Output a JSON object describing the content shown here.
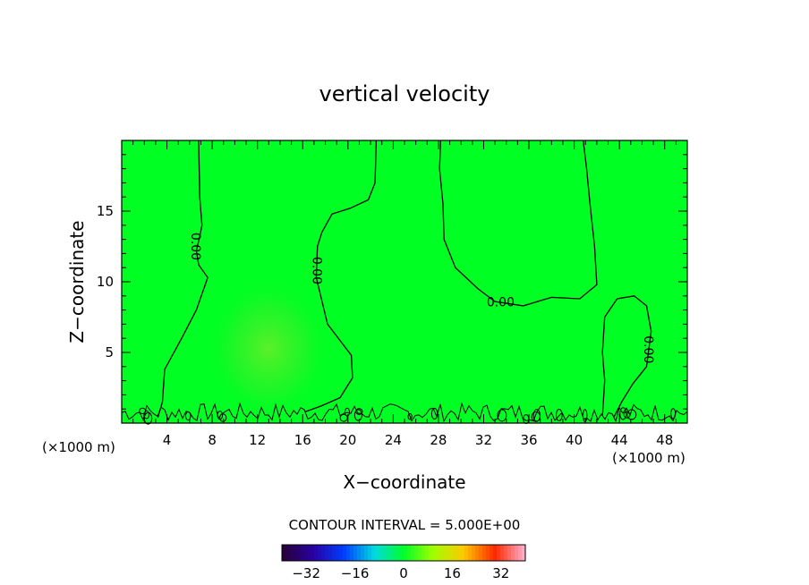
{
  "chart_data": {
    "type": "contour",
    "title": "vertical velocity",
    "xlabel": "X−coordinate",
    "ylabel": "Z−coordinate",
    "x_unit_left": "(×1000 m)",
    "x_unit_right": "(×1000 m)",
    "xlim": [
      0,
      50
    ],
    "ylim": [
      0,
      20
    ],
    "x_ticks": [
      4,
      8,
      12,
      16,
      20,
      24,
      28,
      32,
      36,
      40,
      44,
      48
    ],
    "y_ticks": [
      5,
      10,
      15
    ],
    "contour_interval_text": "CONTOUR INTERVAL = 5.000E+00",
    "colorbar": {
      "range": [
        -40,
        40
      ],
      "ticks": [
        -32,
        -16,
        0,
        16,
        32
      ]
    },
    "contour_labels": [
      {
        "text": "0.00",
        "x": 6.5,
        "z": 12.5
      },
      {
        "text": "0.00",
        "x": 17.2,
        "z": 10.8
      },
      {
        "text": "0.00",
        "x": 33.5,
        "z": 8.5
      },
      {
        "text": "0.00",
        "x": 46.5,
        "z": 5.2
      }
    ],
    "zero_contours": [
      [
        [
          6.8,
          20
        ],
        [
          6.9,
          16
        ],
        [
          7.1,
          14
        ],
        [
          6.9,
          13.2
        ],
        [
          6.6,
          12.2
        ],
        [
          6.8,
          11.2
        ],
        [
          7.6,
          10.3
        ],
        [
          6.6,
          8
        ],
        [
          5.3,
          6
        ],
        [
          3.8,
          3.8
        ],
        [
          3.6,
          1.5
        ],
        [
          3.2,
          0.4
        ]
      ],
      [
        [
          22.5,
          20
        ],
        [
          22.4,
          17
        ],
        [
          21.8,
          15.8
        ],
        [
          20.2,
          15.2
        ],
        [
          18.6,
          14.8
        ],
        [
          17.7,
          13.5
        ],
        [
          17.3,
          12.5
        ],
        [
          17.2,
          10.3
        ],
        [
          18.2,
          7
        ],
        [
          20.3,
          4.8
        ],
        [
          20.4,
          3.2
        ],
        [
          19.3,
          1.8
        ],
        [
          17.6,
          1.2
        ],
        [
          16.2,
          0.8
        ]
      ],
      [
        [
          28.2,
          20
        ],
        [
          28.1,
          18
        ],
        [
          28.4,
          15.5
        ],
        [
          28.5,
          13
        ],
        [
          29.5,
          11
        ],
        [
          31.5,
          9.5
        ],
        [
          33,
          8.6
        ],
        [
          35.5,
          8.3
        ],
        [
          38,
          8.9
        ],
        [
          40.5,
          8.8
        ],
        [
          42,
          9.8
        ],
        [
          41.8,
          12.5
        ],
        [
          41.4,
          15.5
        ],
        [
          41.1,
          18
        ],
        [
          40.8,
          20
        ]
      ],
      [
        [
          42.5,
          0.5
        ],
        [
          42.7,
          3
        ],
        [
          42.5,
          5
        ],
        [
          42.7,
          7.5
        ],
        [
          43.8,
          8.8
        ],
        [
          45.3,
          9
        ],
        [
          46.4,
          8.3
        ],
        [
          46.8,
          6.5
        ],
        [
          46.4,
          4
        ],
        [
          45.2,
          2.8
        ],
        [
          44.2,
          1.5
        ],
        [
          43.5,
          0.4
        ]
      ]
    ]
  }
}
